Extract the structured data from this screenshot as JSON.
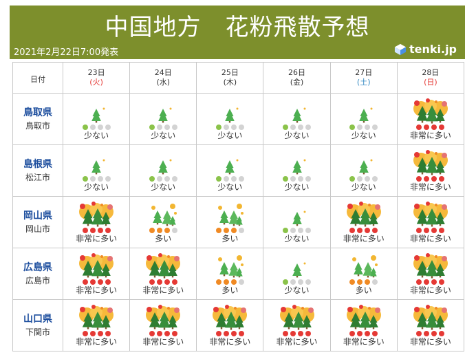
{
  "title": "中国地方　花粉飛散予想",
  "issued": "2021年2月22日7:00発表",
  "logo": "tenki.jp",
  "header_label": "日付",
  "colors": {
    "header_bg": "#7d8f2c",
    "low": "#8bc34a",
    "mid": "#f08a24",
    "high": "#e53935",
    "off": "#d3d3d3",
    "pref": "#1d4e9e"
  },
  "days": [
    {
      "date": "23日",
      "weekday": "(火)",
      "kind": "sun"
    },
    {
      "date": "24日",
      "weekday": "(水)",
      "kind": "wk"
    },
    {
      "date": "25日",
      "weekday": "(木)",
      "kind": "wk"
    },
    {
      "date": "26日",
      "weekday": "(金)",
      "kind": "wk"
    },
    {
      "date": "27日",
      "weekday": "(土)",
      "kind": "sat"
    },
    {
      "date": "28日",
      "weekday": "(日)",
      "kind": "sun"
    }
  ],
  "levels": {
    "1": {
      "label": "少ない",
      "icon": "single-tree-icon"
    },
    "3": {
      "label": "多い",
      "icon": "small-forest-icon"
    },
    "4": {
      "label": "非常に多い",
      "icon": "dense-forest-icon"
    }
  },
  "regions": [
    {
      "pref": "鳥取県",
      "city": "鳥取市",
      "levels": [
        1,
        1,
        1,
        1,
        1,
        4
      ]
    },
    {
      "pref": "島根県",
      "city": "松江市",
      "levels": [
        1,
        1,
        1,
        1,
        1,
        4
      ]
    },
    {
      "pref": "岡山県",
      "city": "岡山市",
      "levels": [
        4,
        3,
        3,
        1,
        4,
        4
      ]
    },
    {
      "pref": "広島県",
      "city": "広島市",
      "levels": [
        4,
        4,
        3,
        1,
        3,
        4
      ]
    },
    {
      "pref": "山口県",
      "city": "下関市",
      "levels": [
        4,
        4,
        4,
        4,
        4,
        4
      ]
    }
  ]
}
